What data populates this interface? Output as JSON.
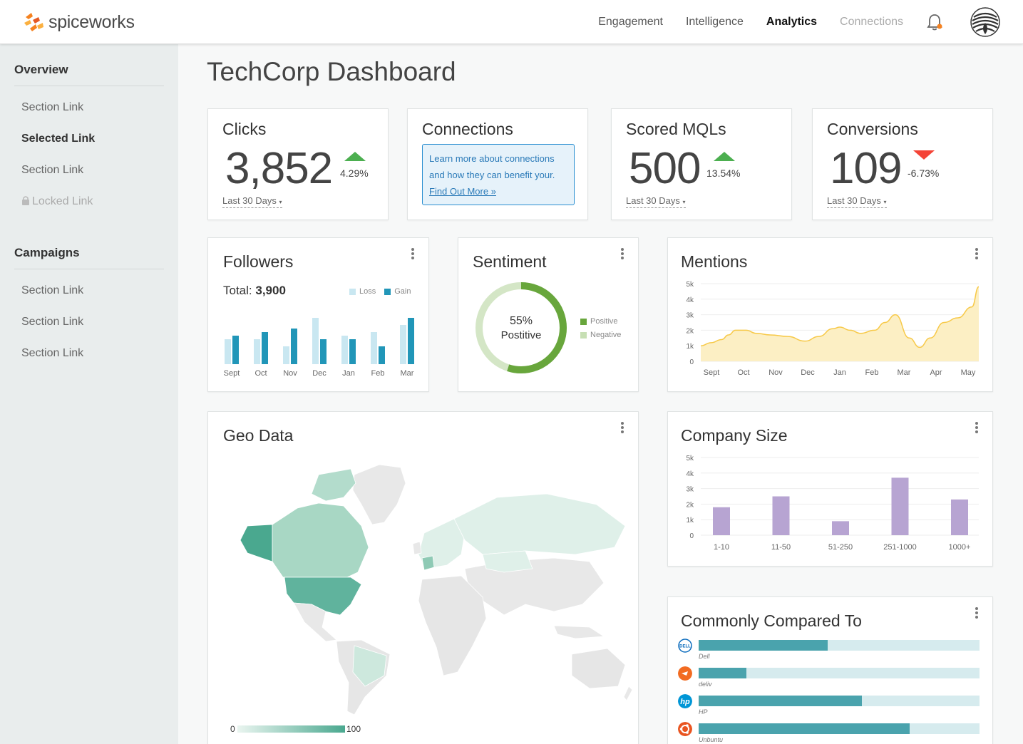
{
  "brand": {
    "name": "spiceworks",
    "accent": "#f58220"
  },
  "nav": {
    "items": [
      "Engagement",
      "Intelligence",
      "Analytics",
      "Connections"
    ],
    "active": "Analytics"
  },
  "sidebar": {
    "overview": {
      "heading": "Overview",
      "links": [
        "Section Link",
        "Selected Link",
        "Section Link",
        "Locked Link"
      ]
    },
    "campaigns": {
      "heading": "Campaigns",
      "links": [
        "Section Link",
        "Section Link",
        "Section Link"
      ]
    }
  },
  "page": {
    "title": "TechCorp Dashboard"
  },
  "kpis": {
    "clicks": {
      "title": "Clicks",
      "value": "3,852",
      "delta": "4.29%",
      "trend": "up",
      "period": "Last 30 Days"
    },
    "connections": {
      "title": "Connections",
      "info_line1": "Learn more about connections",
      "info_line2": "and how they can benefit your.",
      "link": "Find Out More »"
    },
    "mqls": {
      "title": "Scored MQLs",
      "value": "500",
      "delta": "13.54%",
      "trend": "up",
      "period": "Last 30 Days"
    },
    "conversions": {
      "title": "Conversions",
      "value": "109",
      "delta": "-6.73%",
      "trend": "down",
      "period": "Last 30 Days"
    }
  },
  "followers": {
    "title": "Followers",
    "total_label": "Total:",
    "total_value": "3,900",
    "legend": {
      "loss": "Loss",
      "gain": "Gain"
    },
    "colors": {
      "loss": "#c9e7f1",
      "gain": "#2196b8"
    }
  },
  "sentiment": {
    "title": "Sentiment",
    "center_value": "55%",
    "center_label": "Postitive",
    "legend": {
      "positive": "Positive",
      "negative": "Negative"
    },
    "colors": {
      "positive": "#68a63c",
      "negative": "#d4e6c6"
    }
  },
  "mentions": {
    "title": "Mentions",
    "color": "#f7c948",
    "fill": "#fcefc4"
  },
  "geo": {
    "title": "Geo Data",
    "scale_min": "0",
    "scale_max": "100",
    "color": "#4aa88f"
  },
  "company_size": {
    "title": "Company Size",
    "color": "#b7a4d2"
  },
  "compared": {
    "title": "Commonly Compared To",
    "items": [
      {
        "name": "Dell",
        "value": 0.46,
        "icon": "dell-logo-icon",
        "color": "#0a6bbd"
      },
      {
        "name": "deliv",
        "value": 0.17,
        "icon": "deliv-logo-icon",
        "color": "#f26b21"
      },
      {
        "name": "HP",
        "value": 0.58,
        "icon": "hp-logo-icon",
        "color": "#0096d6"
      },
      {
        "name": "Unbuntu",
        "value": 0.75,
        "icon": "ubuntu-logo-icon",
        "color": "#e95420"
      }
    ]
  },
  "chart_data": [
    {
      "type": "bar",
      "categories": [
        "Sept",
        "Oct",
        "Nov",
        "Dec",
        "Jan",
        "Feb",
        "Mar"
      ],
      "series": [
        {
          "name": "Loss",
          "values": [
            35,
            35,
            25,
            65,
            40,
            45,
            55
          ]
        },
        {
          "name": "Gain",
          "values": [
            40,
            45,
            50,
            35,
            35,
            25,
            65
          ]
        }
      ],
      "ylim": [
        0,
        70
      ]
    },
    {
      "type": "pie",
      "series": [
        {
          "name": "Positive",
          "values": [
            55
          ]
        },
        {
          "name": "Negative",
          "values": [
            45
          ]
        }
      ]
    },
    {
      "type": "area",
      "categories": [
        "Sept",
        "Oct",
        "Nov",
        "Dec",
        "Jan",
        "Feb",
        "Mar",
        "Apr",
        "May"
      ],
      "yticks": [
        "0",
        "1k",
        "2k",
        "3k",
        "4k",
        "5k"
      ],
      "x": [
        0,
        0.3,
        0.6,
        0.8,
        1,
        1.3,
        1.6,
        2,
        2.5,
        3,
        3.4,
        3.8,
        4,
        4.3,
        4.6,
        5,
        5.3,
        5.6,
        6,
        6.3,
        6.6,
        7,
        7.4,
        7.8,
        8
      ],
      "y": [
        1000,
        1200,
        1400,
        1700,
        2000,
        2000,
        1800,
        1700,
        1600,
        1300,
        1600,
        2100,
        2200,
        2000,
        1800,
        2000,
        2500,
        3000,
        1500,
        900,
        1500,
        2500,
        2800,
        3500,
        4800
      ],
      "ylim": [
        0,
        5000
      ]
    },
    {
      "type": "bar",
      "categories": [
        "1-10",
        "11-50",
        "51-250",
        "251-1000",
        "1000+"
      ],
      "values": [
        1800,
        2500,
        900,
        3700,
        2300
      ],
      "yticks": [
        "0",
        "1k",
        "2k",
        "3k",
        "4k",
        "5k"
      ],
      "ylim": [
        0,
        5000
      ]
    }
  ]
}
